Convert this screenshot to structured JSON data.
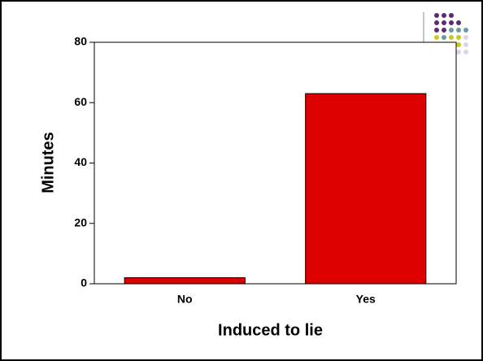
{
  "chart_data": {
    "type": "bar",
    "categories": [
      "No",
      "Yes"
    ],
    "values": [
      2,
      63
    ],
    "color": "#dd0000",
    "x_label": "Induced to lie",
    "y_label": "Minutes",
    "ylim": [
      0,
      80
    ],
    "yticks": [
      0,
      20,
      40,
      60,
      80
    ]
  }
}
